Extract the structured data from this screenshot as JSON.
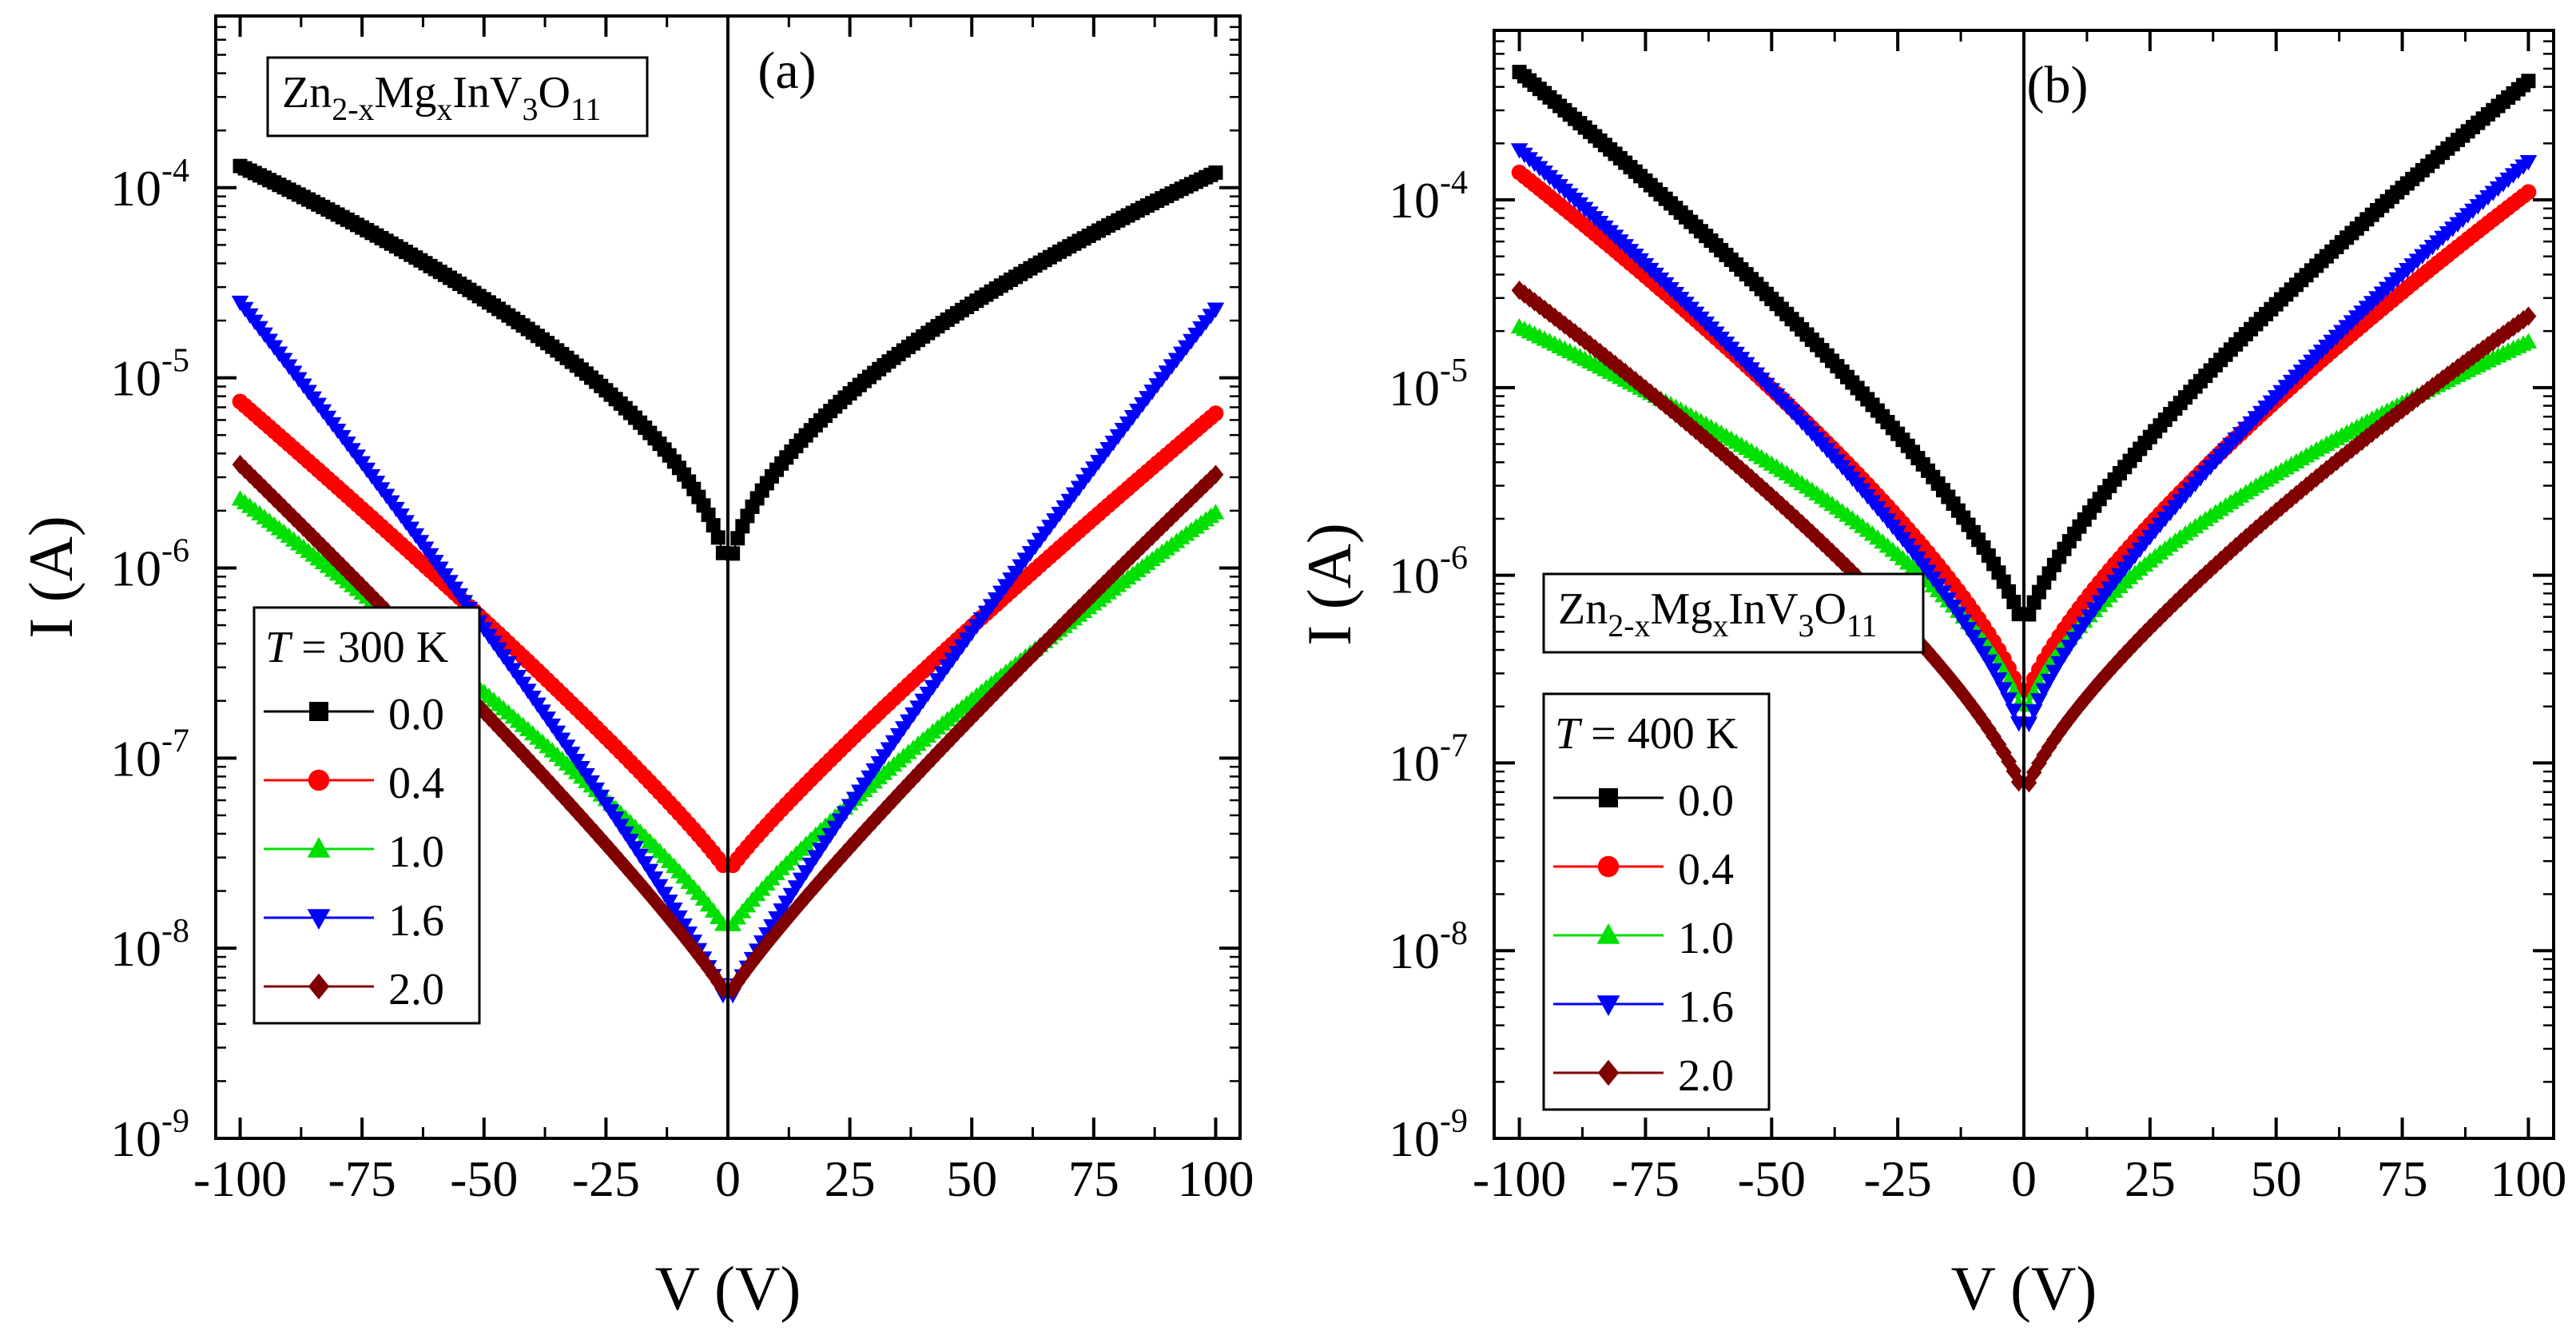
{
  "chart_data": [
    {
      "type": "scatter",
      "panel_label": "(a)",
      "xlabel": "V  (V)",
      "ylabel": "I  (A)",
      "y_scale": "log",
      "xlim": [
        -105,
        105
      ],
      "ylim": [
        1e-09,
        0.0008
      ],
      "x_ticks": [
        -100,
        -75,
        -50,
        -25,
        0,
        25,
        50,
        75,
        100
      ],
      "x_tick_labels": [
        "-100",
        "-75",
        "-50",
        "-25",
        "0",
        "25",
        "50",
        "75",
        "100"
      ],
      "y_ticks": [
        {
          "value": 1e-09,
          "base": "10",
          "exp": "-9"
        },
        {
          "value": 1e-08,
          "base": "10",
          "exp": "-8"
        },
        {
          "value": 1e-07,
          "base": "10",
          "exp": "-7"
        },
        {
          "value": 1e-06,
          "base": "10",
          "exp": "-6"
        },
        {
          "value": 1e-05,
          "base": "10",
          "exp": "-5"
        },
        {
          "value": 0.0001,
          "base": "10",
          "exp": "-4"
        }
      ],
      "compound": {
        "zn": "Zn",
        "zn_sub": "2-x",
        "mg": "Mg",
        "mg_sub": "x",
        "inv": "InV",
        "v_sub": "3",
        "o": "O",
        "o_sub": "11"
      },
      "compound_position": "top-left",
      "legend_position": "bottom-left",
      "legend_title_T": "T",
      "legend_title_rest": " = 300 K",
      "series": [
        {
          "name": "0.0",
          "marker": "square",
          "color": "#000000",
          "i_at_minus_100": 0.00013,
          "i_at_plus_100": 0.00012,
          "i_near_zero": 8e-07,
          "shape_exponent": 0.55
        },
        {
          "name": "0.4",
          "marker": "circle",
          "color": "#ff0000",
          "i_at_minus_100": 7.5e-06,
          "i_at_plus_100": 6.5e-06,
          "i_near_zero": 2.5e-08,
          "shape_exponent": 0.9
        },
        {
          "name": "1.0",
          "marker": "triangle-up",
          "color": "#00e000",
          "i_at_minus_100": 2.3e-06,
          "i_at_plus_100": 1.95e-06,
          "i_near_zero": 1.2e-08,
          "shape_exponent": 0.85
        },
        {
          "name": "1.6",
          "marker": "triangle-down",
          "color": "#0000ff",
          "i_at_minus_100": 2.5e-05,
          "i_at_plus_100": 2.3e-05,
          "i_near_zero": 5e-09,
          "shape_exponent": 0.9
        },
        {
          "name": "2.0",
          "marker": "diamond",
          "color": "#800000",
          "i_at_minus_100": 3.5e-06,
          "i_at_plus_100": 3.1e-06,
          "i_near_zero": 5.5e-09,
          "shape_exponent": 0.9
        }
      ]
    },
    {
      "type": "scatter",
      "panel_label": "(b)",
      "xlabel": "V  (V)",
      "ylabel": "I  (A)",
      "y_scale": "log",
      "xlim": [
        -105,
        105
      ],
      "ylim": [
        1e-09,
        0.0008
      ],
      "x_ticks": [
        -100,
        -75,
        -50,
        -25,
        0,
        25,
        50,
        75,
        100
      ],
      "x_tick_labels": [
        "-100",
        "-75",
        "-50",
        "-25",
        "0",
        "25",
        "50",
        "75",
        "100"
      ],
      "y_ticks": [
        {
          "value": 1e-09,
          "base": "10",
          "exp": "-9"
        },
        {
          "value": 1e-08,
          "base": "10",
          "exp": "-8"
        },
        {
          "value": 1e-07,
          "base": "10",
          "exp": "-7"
        },
        {
          "value": 1e-06,
          "base": "10",
          "exp": "-6"
        },
        {
          "value": 1e-05,
          "base": "10",
          "exp": "-5"
        },
        {
          "value": 0.0001,
          "base": "10",
          "exp": "-4"
        }
      ],
      "compound": {
        "zn": "Zn",
        "zn_sub": "2-x",
        "mg": "Mg",
        "mg_sub": "x",
        "inv": "InV",
        "v_sub": "3",
        "o": "O",
        "o_sub": "11"
      },
      "compound_position": "center-left",
      "legend_position": "bottom-left",
      "legend_title_T": "T",
      "legend_title_rest": " = 400 K",
      "series": [
        {
          "name": "0.0",
          "marker": "square",
          "color": "#000000",
          "i_at_minus_100": 0.00048,
          "i_at_plus_100": 0.00043,
          "i_near_zero": 5e-07,
          "shape_exponent": 0.75
        },
        {
          "name": "0.4",
          "marker": "circle",
          "color": "#ff0000",
          "i_at_minus_100": 0.00014,
          "i_at_plus_100": 0.00011,
          "i_near_zero": 2e-07,
          "shape_exponent": 0.75
        },
        {
          "name": "1.0",
          "marker": "triangle-up",
          "color": "#00e000",
          "i_at_minus_100": 2.1e-05,
          "i_at_plus_100": 1.75e-05,
          "i_near_zero": 1.5e-07,
          "shape_exponent": 0.6
        },
        {
          "name": "1.6",
          "marker": "triangle-down",
          "color": "#0000ff",
          "i_at_minus_100": 0.000185,
          "i_at_plus_100": 0.00016,
          "i_near_zero": 1.3e-07,
          "shape_exponent": 0.75
        },
        {
          "name": "2.0",
          "marker": "diamond",
          "color": "#800000",
          "i_at_minus_100": 3.3e-05,
          "i_at_plus_100": 2.4e-05,
          "i_near_zero": 6.5e-08,
          "shape_exponent": 0.75
        }
      ]
    }
  ]
}
